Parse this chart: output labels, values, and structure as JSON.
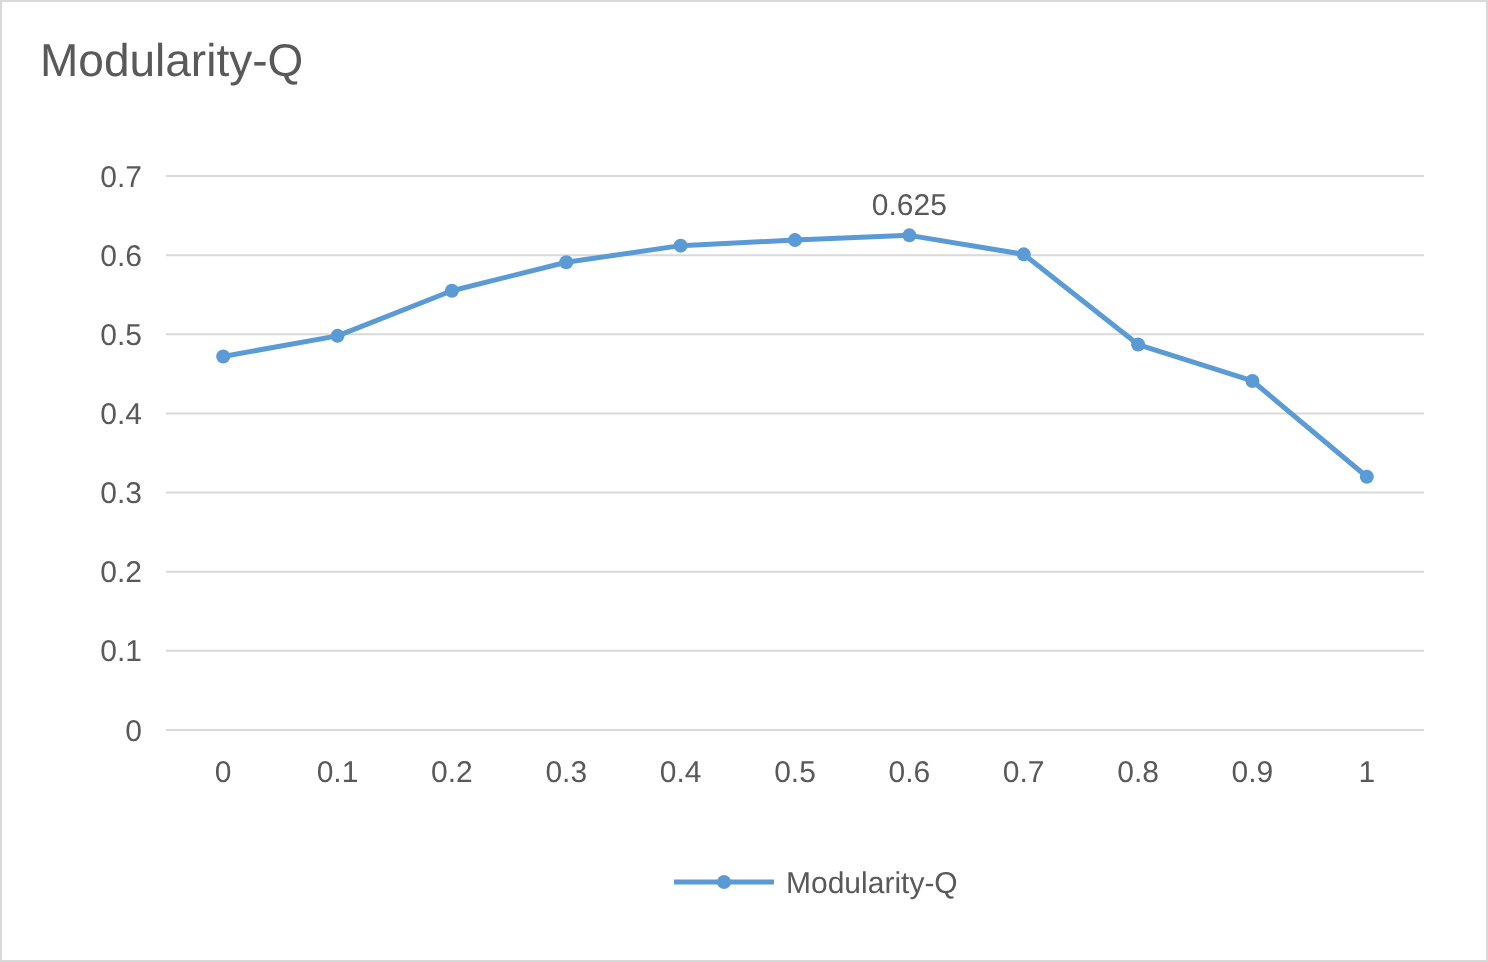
{
  "chart_data": {
    "type": "line",
    "title": "Modularity-Q",
    "categories": [
      "0",
      "0.1",
      "0.2",
      "0.3",
      "0.4",
      "0.5",
      "0.6",
      "0.7",
      "0.8",
      "0.9",
      "1"
    ],
    "series": [
      {
        "name": "Modularity-Q",
        "color": "#5b9bd5",
        "values": [
          0.472,
          0.498,
          0.555,
          0.591,
          0.612,
          0.619,
          0.625,
          0.601,
          0.487,
          0.441,
          0.32
        ],
        "value_labels": [
          null,
          null,
          null,
          null,
          null,
          null,
          "0.625",
          null,
          null,
          null,
          null
        ]
      }
    ],
    "ylim": [
      0,
      0.7
    ],
    "yticks": [
      0,
      0.1,
      0.2,
      0.3,
      0.4,
      0.5,
      0.6,
      0.7
    ],
    "grid": "y",
    "legend": "bottom",
    "marker": "circle",
    "line_style": "solid"
  }
}
